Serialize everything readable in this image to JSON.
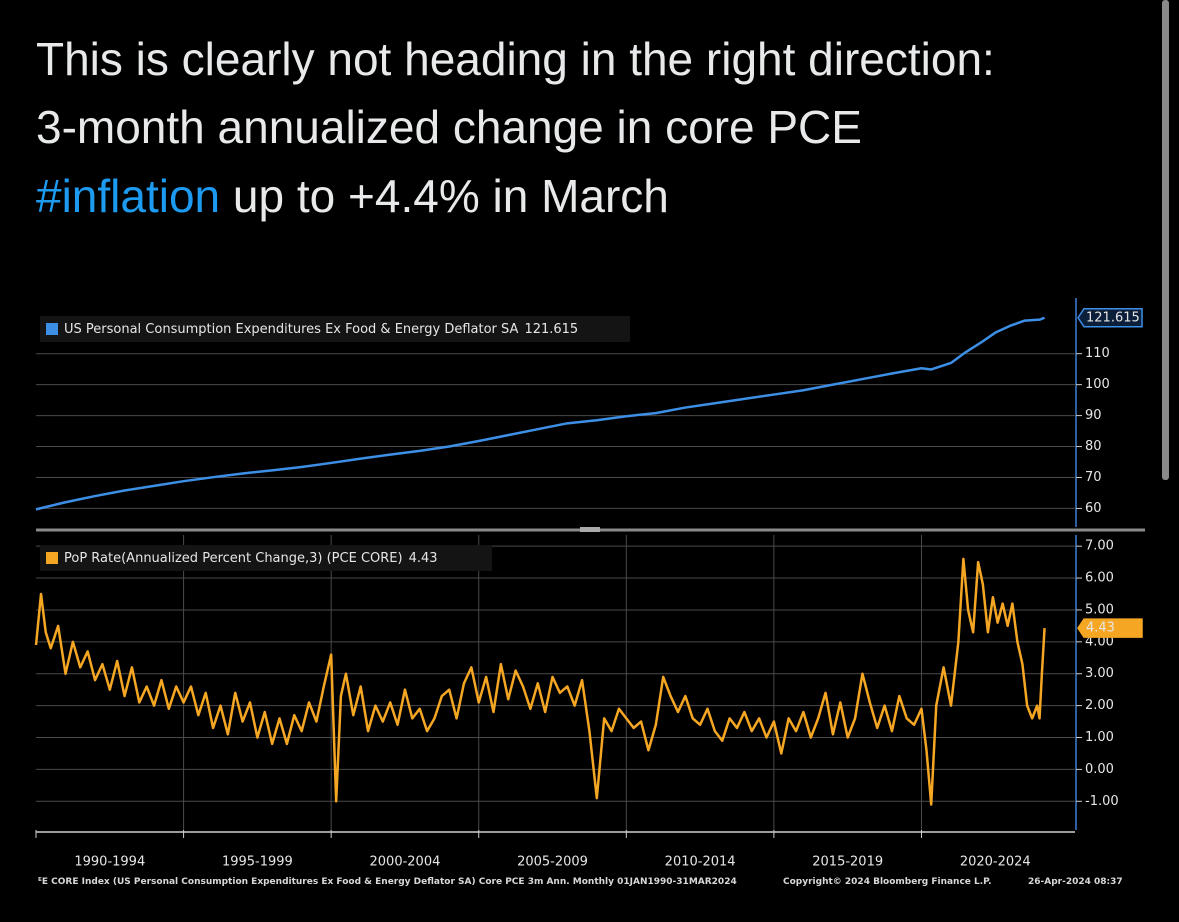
{
  "post": {
    "line1": "This is clearly not heading in the right direction:",
    "line2": "3-month annualized change in core PCE",
    "hashtag": "#inflation",
    "line3": " up to +4.4% in March"
  },
  "chart_data": [
    {
      "type": "line",
      "xlim": [
        1990,
        2025.1
      ],
      "ylim": [
        54,
        128
      ],
      "yticks": [
        60,
        70,
        80,
        90,
        100,
        110
      ],
      "grid": true,
      "series": [
        {
          "name": "US Personal Consumption Expenditures Ex Food & Energy Deflator SA",
          "color": "#3d8fe6",
          "x": [
            1990,
            1991,
            1992,
            1993,
            1994,
            1995,
            1996,
            1997,
            1998,
            1999,
            2000,
            2001,
            2002,
            2003,
            2004,
            2005,
            2006,
            2007,
            2008,
            2009,
            2010,
            2011,
            2012,
            2013,
            2014,
            2015,
            2016,
            2017,
            2018,
            2019,
            2020,
            2020.33,
            2021,
            2021.5,
            2022,
            2022.5,
            2023,
            2023.5,
            2024,
            2024.17
          ],
          "values": [
            59.7,
            62,
            64,
            65.8,
            67.3,
            68.8,
            70.1,
            71.3,
            72.3,
            73.4,
            74.7,
            76.1,
            77.4,
            78.6,
            80.0,
            81.8,
            83.7,
            85.6,
            87.5,
            88.5,
            89.8,
            90.8,
            92.6,
            94.0,
            95.4,
            96.8,
            98.2,
            100,
            101.8,
            103.6,
            105.3,
            104.9,
            107.0,
            110.5,
            113.5,
            116.8,
            119.0,
            120.7,
            121.0,
            121.615
          ]
        }
      ]
    },
    {
      "type": "line",
      "xlim": [
        1990,
        2025.1
      ],
      "ylim": [
        -1.9,
        7.35
      ],
      "yticks": [
        {
          "value": 7,
          "label": "7.00"
        },
        {
          "value": 6,
          "label": "6.00"
        },
        {
          "value": 5,
          "label": "5.00"
        },
        {
          "value": 4,
          "label": "4.00"
        },
        {
          "value": 3,
          "label": "3.00"
        },
        {
          "value": 2,
          "label": "2.00"
        },
        {
          "value": 1,
          "label": "1.00"
        },
        {
          "value": 0,
          "label": "0.00"
        },
        {
          "value": -1,
          "label": "-1.00"
        }
      ],
      "xticks": [
        {
          "value": 1990,
          "label": "1990-1994"
        },
        {
          "value": 1995,
          "label": "1995-1999"
        },
        {
          "value": 2000,
          "label": "2000-2004"
        },
        {
          "value": 2005,
          "label": "2005-2009"
        },
        {
          "value": 2010,
          "label": "2010-2014"
        },
        {
          "value": 2015,
          "label": "2015-2019"
        },
        {
          "value": 2020,
          "label": "2020-2024"
        }
      ],
      "grid": true,
      "series": [
        {
          "name": "PoP Rate(Annualized Percent Change,3) (PCE CORE)",
          "color": "#f5a623",
          "x": [
            1990.0,
            1990.17,
            1990.33,
            1990.5,
            1990.75,
            1991.0,
            1991.25,
            1991.5,
            1991.75,
            1992.0,
            1992.25,
            1992.5,
            1992.75,
            1993.0,
            1993.25,
            1993.5,
            1993.75,
            1994.0,
            1994.25,
            1994.5,
            1994.75,
            1995.0,
            1995.25,
            1995.5,
            1995.75,
            1996.0,
            1996.25,
            1996.5,
            1996.75,
            1997.0,
            1997.25,
            1997.5,
            1997.75,
            1998.0,
            1998.25,
            1998.5,
            1998.75,
            1999.0,
            1999.25,
            1999.5,
            1999.75,
            2000.0,
            2000.17,
            2000.33,
            2000.5,
            2000.75,
            2001.0,
            2001.25,
            2001.5,
            2001.75,
            2002.0,
            2002.25,
            2002.5,
            2002.75,
            2003.0,
            2003.25,
            2003.5,
            2003.75,
            2004.0,
            2004.25,
            2004.5,
            2004.75,
            2005.0,
            2005.25,
            2005.5,
            2005.75,
            2006.0,
            2006.25,
            2006.5,
            2006.75,
            2007.0,
            2007.25,
            2007.5,
            2007.75,
            2008.0,
            2008.25,
            2008.5,
            2008.75,
            2009.0,
            2009.25,
            2009.5,
            2009.75,
            2010.0,
            2010.25,
            2010.5,
            2010.75,
            2011.0,
            2011.25,
            2011.5,
            2011.75,
            2012.0,
            2012.25,
            2012.5,
            2012.75,
            2013.0,
            2013.25,
            2013.5,
            2013.75,
            2014.0,
            2014.25,
            2014.5,
            2014.75,
            2015.0,
            2015.25,
            2015.5,
            2015.75,
            2016.0,
            2016.25,
            2016.5,
            2016.75,
            2017.0,
            2017.25,
            2017.5,
            2017.75,
            2018.0,
            2018.25,
            2018.5,
            2018.75,
            2019.0,
            2019.25,
            2019.5,
            2019.75,
            2020.0,
            2020.17,
            2020.33,
            2020.5,
            2020.75,
            2021.0,
            2021.25,
            2021.42,
            2021.58,
            2021.75,
            2021.92,
            2022.08,
            2022.25,
            2022.42,
            2022.58,
            2022.75,
            2022.92,
            2023.08,
            2023.25,
            2023.42,
            2023.58,
            2023.75,
            2023.92,
            2024.0,
            2024.08,
            2024.17
          ],
          "values": [
            3.9,
            5.5,
            4.3,
            3.8,
            4.5,
            3.0,
            4.0,
            3.2,
            3.7,
            2.8,
            3.3,
            2.5,
            3.4,
            2.3,
            3.2,
            2.1,
            2.6,
            2.0,
            2.8,
            1.9,
            2.6,
            2.1,
            2.6,
            1.7,
            2.4,
            1.3,
            2.0,
            1.1,
            2.4,
            1.5,
            2.1,
            1.0,
            1.8,
            0.8,
            1.6,
            0.8,
            1.7,
            1.2,
            2.1,
            1.5,
            2.6,
            3.6,
            -1.0,
            2.3,
            3.0,
            1.7,
            2.6,
            1.2,
            2.0,
            1.5,
            2.1,
            1.4,
            2.5,
            1.6,
            1.9,
            1.2,
            1.6,
            2.3,
            2.5,
            1.6,
            2.7,
            3.2,
            2.1,
            2.9,
            1.8,
            3.3,
            2.2,
            3.1,
            2.6,
            1.9,
            2.7,
            1.8,
            2.9,
            2.4,
            2.6,
            2.0,
            2.8,
            1.2,
            -0.9,
            1.6,
            1.2,
            1.9,
            1.6,
            1.3,
            1.5,
            0.6,
            1.4,
            2.9,
            2.3,
            1.8,
            2.3,
            1.6,
            1.4,
            1.9,
            1.2,
            0.9,
            1.6,
            1.3,
            1.8,
            1.2,
            1.6,
            1.0,
            1.5,
            0.5,
            1.6,
            1.2,
            1.8,
            1.0,
            1.6,
            2.4,
            1.1,
            2.1,
            1.0,
            1.6,
            3.0,
            2.1,
            1.3,
            2.0,
            1.2,
            2.3,
            1.6,
            1.4,
            1.9,
            0.6,
            -1.1,
            2.0,
            3.2,
            2.0,
            4.0,
            6.6,
            5.0,
            4.3,
            6.5,
            5.8,
            4.3,
            5.4,
            4.6,
            5.2,
            4.5,
            5.2,
            4.0,
            3.3,
            2.0,
            1.6,
            2.0,
            1.6,
            3.0,
            4.43
          ]
        }
      ]
    }
  ],
  "footer": {
    "left": "ᴱE CORE Index (US Personal Consumption Expenditures Ex Food & Energy Deflator SA) Core PCE 3m Ann.  Monthly 01JAN1990-31MAR2024",
    "center": "Copyright© 2024 Bloomberg Finance L.P.",
    "right": "26-Apr-2024 08:37"
  }
}
